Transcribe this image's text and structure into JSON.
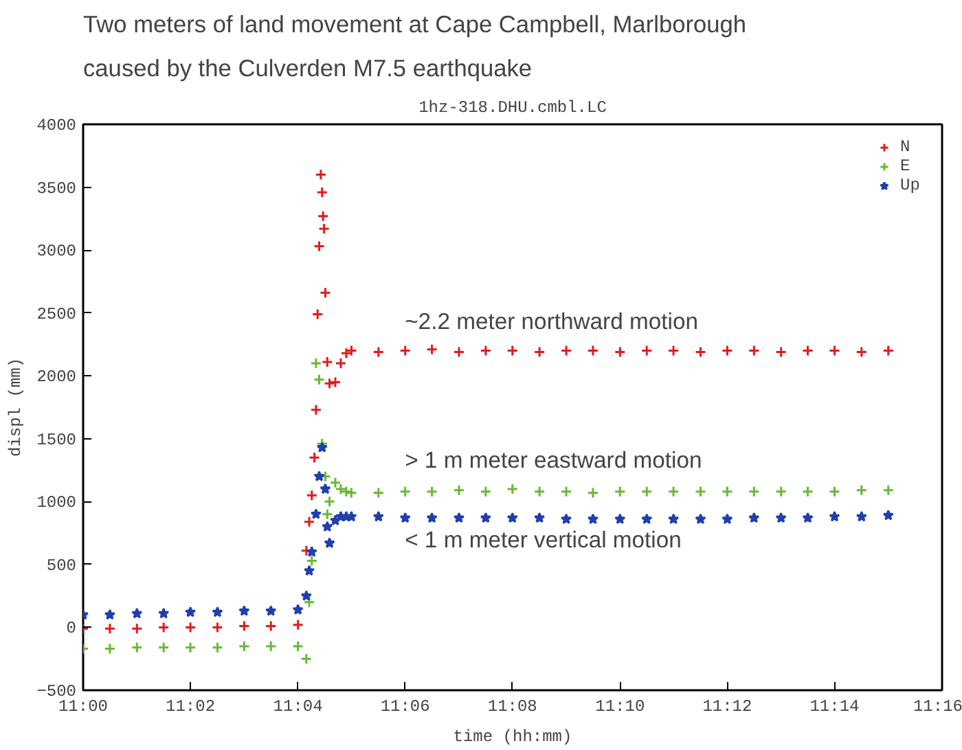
{
  "chart_data": {
    "type": "scatter",
    "title": "Two meters of land movement at Cape Campbell, Marlborough",
    "subtitle": "caused by the Culverden M7.5 earthquake",
    "xlabel": "time (hh:mm)",
    "ylabel": "displ (mm)",
    "annotations": [
      "1hz-318.DHU.cmbl.LC",
      "~2.2 meter northward motion",
      "> 1 m meter eastward motion",
      "< 1 m meter vertical motion"
    ],
    "xlim": [
      11,
      11.2667
    ],
    "xticks": [
      {
        "value": 11,
        "label": "11:00"
      },
      {
        "value": 11.0333,
        "label": "11:02"
      },
      {
        "value": 11.0667,
        "label": "11:04"
      },
      {
        "value": 11.1,
        "label": "11:06"
      },
      {
        "value": 11.1333,
        "label": "11:08"
      },
      {
        "value": 11.1667,
        "label": "11:10"
      },
      {
        "value": 11.2,
        "label": "11:12"
      },
      {
        "value": 11.2333,
        "label": "11:14"
      },
      {
        "value": 11.2667,
        "label": "11:16"
      }
    ],
    "ylim": [
      -500,
      4000
    ],
    "yticks": [
      -500,
      0,
      500,
      1000,
      1500,
      2000,
      2500,
      3000,
      3500,
      4000
    ],
    "grid": false,
    "legend": "top right",
    "series": [
      {
        "name": "N",
        "color": "#e41a1c",
        "marker": "cross",
        "x": [
          11,
          11.0083,
          11.0167,
          11.025,
          11.0333,
          11.0417,
          11.05,
          11.0583,
          11.0667,
          11.0693,
          11.0702,
          11.071,
          11.0718,
          11.0723,
          11.0728,
          11.0733,
          11.0738,
          11.0742,
          11.0745,
          11.0748,
          11.0752,
          11.0758,
          11.0765,
          11.0783,
          11.08,
          11.0817,
          11.0833,
          11.0917,
          11.1,
          11.1083,
          11.1167,
          11.125,
          11.1333,
          11.1417,
          11.15,
          11.1583,
          11.1667,
          11.175,
          11.1833,
          11.1917,
          11.2,
          11.2083,
          11.2167,
          11.225,
          11.2333,
          11.2417,
          11.25
        ],
        "values": [
          -10,
          -10,
          -10,
          0,
          0,
          0,
          10,
          10,
          20,
          610,
          840,
          1050,
          1350,
          1730,
          2490,
          3030,
          3600,
          3460,
          3270,
          3170,
          2660,
          2110,
          1940,
          1950,
          2100,
          2180,
          2200,
          2190,
          2200,
          2210,
          2190,
          2200,
          2200,
          2190,
          2200,
          2200,
          2190,
          2200,
          2200,
          2190,
          2200,
          2200,
          2190,
          2200,
          2200,
          2190,
          2200
        ]
      },
      {
        "name": "E",
        "color": "#66bb33",
        "marker": "cross",
        "x": [
          11,
          11.0083,
          11.0167,
          11.025,
          11.0333,
          11.0417,
          11.05,
          11.0583,
          11.0667,
          11.0693,
          11.0702,
          11.071,
          11.0723,
          11.0733,
          11.0742,
          11.0752,
          11.0758,
          11.0765,
          11.0783,
          11.08,
          11.0817,
          11.0833,
          11.0917,
          11.1,
          11.1083,
          11.1167,
          11.125,
          11.1333,
          11.1417,
          11.15,
          11.1583,
          11.1667,
          11.175,
          11.1833,
          11.1917,
          11.2,
          11.2083,
          11.2167,
          11.225,
          11.2333,
          11.2417,
          11.25
        ],
        "values": [
          -170,
          -170,
          -160,
          -160,
          -160,
          -160,
          -150,
          -150,
          -150,
          -250,
          200,
          530,
          2100,
          1970,
          1460,
          1200,
          900,
          1000,
          1150,
          1100,
          1080,
          1070,
          1070,
          1080,
          1080,
          1090,
          1080,
          1100,
          1080,
          1080,
          1070,
          1080,
          1080,
          1080,
          1080,
          1080,
          1080,
          1080,
          1080,
          1080,
          1090,
          1090
        ]
      },
      {
        "name": "Up",
        "color": "#1f3fb0",
        "marker": "star",
        "x": [
          11,
          11.0083,
          11.0167,
          11.025,
          11.0333,
          11.0417,
          11.05,
          11.0583,
          11.0667,
          11.0693,
          11.0702,
          11.071,
          11.0723,
          11.0733,
          11.0742,
          11.0752,
          11.0758,
          11.0765,
          11.0783,
          11.08,
          11.0817,
          11.0833,
          11.0917,
          11.1,
          11.1083,
          11.1167,
          11.125,
          11.1333,
          11.1417,
          11.15,
          11.1583,
          11.1667,
          11.175,
          11.1833,
          11.1917,
          11.2,
          11.2083,
          11.2167,
          11.225,
          11.2333,
          11.2417,
          11.25
        ],
        "values": [
          100,
          100,
          110,
          110,
          120,
          120,
          130,
          130,
          140,
          250,
          450,
          600,
          900,
          1200,
          1430,
          1100,
          800,
          670,
          850,
          880,
          880,
          880,
          880,
          870,
          870,
          870,
          870,
          870,
          870,
          860,
          860,
          860,
          860,
          860,
          860,
          860,
          870,
          870,
          870,
          880,
          880,
          890
        ]
      }
    ]
  }
}
